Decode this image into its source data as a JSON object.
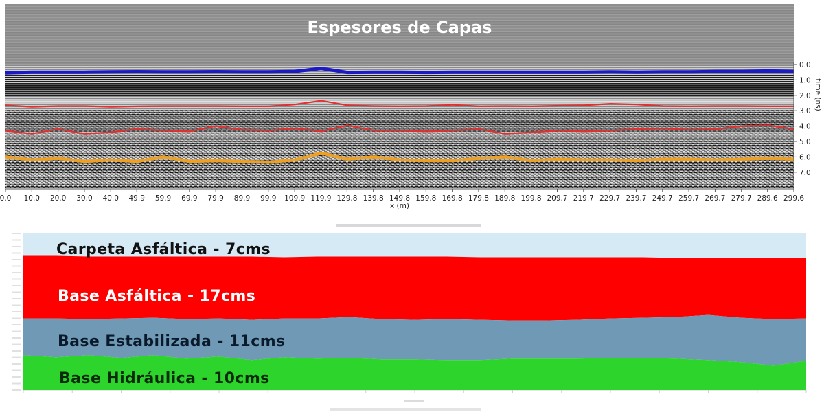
{
  "chart_data": [
    {
      "type": "line",
      "title": "Espesores de Capas",
      "xlabel": "x (m)",
      "ylabel": "time (ns)",
      "xlim": [
        0,
        299.6
      ],
      "ylim": [
        0,
        7.8
      ],
      "x_ticks": [
        "0.0",
        "10.0",
        "20.0",
        "30.0",
        "40.0",
        "49.9",
        "59.9",
        "69.9",
        "79.9",
        "89.9",
        "99.9",
        "109.9",
        "119.9",
        "129.8",
        "139.8",
        "149.8",
        "159.8",
        "169.8",
        "179.8",
        "189.8",
        "199.8",
        "209.7",
        "219.7",
        "229.7",
        "239.7",
        "249.7",
        "259.7",
        "269.7",
        "279.7",
        "289.6",
        "299.6"
      ],
      "y_ticks": [
        "0.0",
        "1.0",
        "2.0",
        "3.0",
        "4.0",
        "5.0",
        "6.0",
        "7.0"
      ],
      "x": [
        0,
        10,
        20,
        30,
        40,
        50,
        60,
        70,
        80,
        90,
        100,
        110,
        120,
        130,
        140,
        150,
        160,
        170,
        180,
        190,
        200,
        210,
        220,
        230,
        240,
        250,
        260,
        270,
        280,
        290,
        299.6
      ],
      "series": [
        {
          "color": "#1a1ac8",
          "values": [
            0.55,
            0.5,
            0.5,
            0.5,
            0.48,
            0.47,
            0.48,
            0.48,
            0.47,
            0.48,
            0.48,
            0.45,
            0.25,
            0.52,
            0.5,
            0.5,
            0.52,
            0.5,
            0.5,
            0.5,
            0.5,
            0.5,
            0.5,
            0.48,
            0.5,
            0.48,
            0.48,
            0.45,
            0.45,
            0.42,
            0.45
          ]
        },
        {
          "color": "#e03030",
          "values": [
            2.65,
            2.75,
            2.7,
            2.7,
            2.75,
            2.72,
            2.7,
            2.7,
            2.7,
            2.72,
            2.72,
            2.6,
            2.35,
            2.65,
            2.7,
            2.72,
            2.7,
            2.62,
            2.72,
            2.7,
            2.72,
            2.68,
            2.65,
            2.55,
            2.6,
            2.7,
            2.72,
            2.7,
            2.7,
            2.72,
            2.72
          ]
        },
        {
          "color": "#e03030",
          "values": [
            4.3,
            4.5,
            4.2,
            4.5,
            4.4,
            4.2,
            4.3,
            4.35,
            4.0,
            4.25,
            4.3,
            4.15,
            4.35,
            3.95,
            4.3,
            4.3,
            4.35,
            4.3,
            4.2,
            4.5,
            4.4,
            4.3,
            4.35,
            4.3,
            4.2,
            4.15,
            4.25,
            4.2,
            4.0,
            3.95,
            4.2
          ]
        },
        {
          "color": "#f0a020",
          "values": [
            6.0,
            6.2,
            6.1,
            6.3,
            6.2,
            6.3,
            6.0,
            6.3,
            6.25,
            6.3,
            6.35,
            6.2,
            5.75,
            6.15,
            6.0,
            6.2,
            6.25,
            6.25,
            6.1,
            6.0,
            6.25,
            6.15,
            6.2,
            6.2,
            6.25,
            6.15,
            6.15,
            6.2,
            6.15,
            6.1,
            6.15
          ]
        }
      ],
      "grid": false,
      "legend": "none"
    },
    {
      "type": "area",
      "series": [
        {
          "name": "Carpeta Asfáltica - 7cms",
          "color": "#d6eaf5",
          "thickness_cm": 7
        },
        {
          "name": "Base Asfáltica - 17cms",
          "color": "#ff0000",
          "thickness_cm": 17
        },
        {
          "name": "Base Estabilizada - 11cms",
          "color": "#6f99b4",
          "thickness_cm": 11
        },
        {
          "name": "Base Hidráulica - 10cms",
          "color": "#2cd42c",
          "thickness_cm": 10
        }
      ],
      "label_colors": [
        "#111111",
        "#ffffff",
        "#0a1a2a",
        "#0a2a0a"
      ],
      "legend": "none"
    }
  ]
}
